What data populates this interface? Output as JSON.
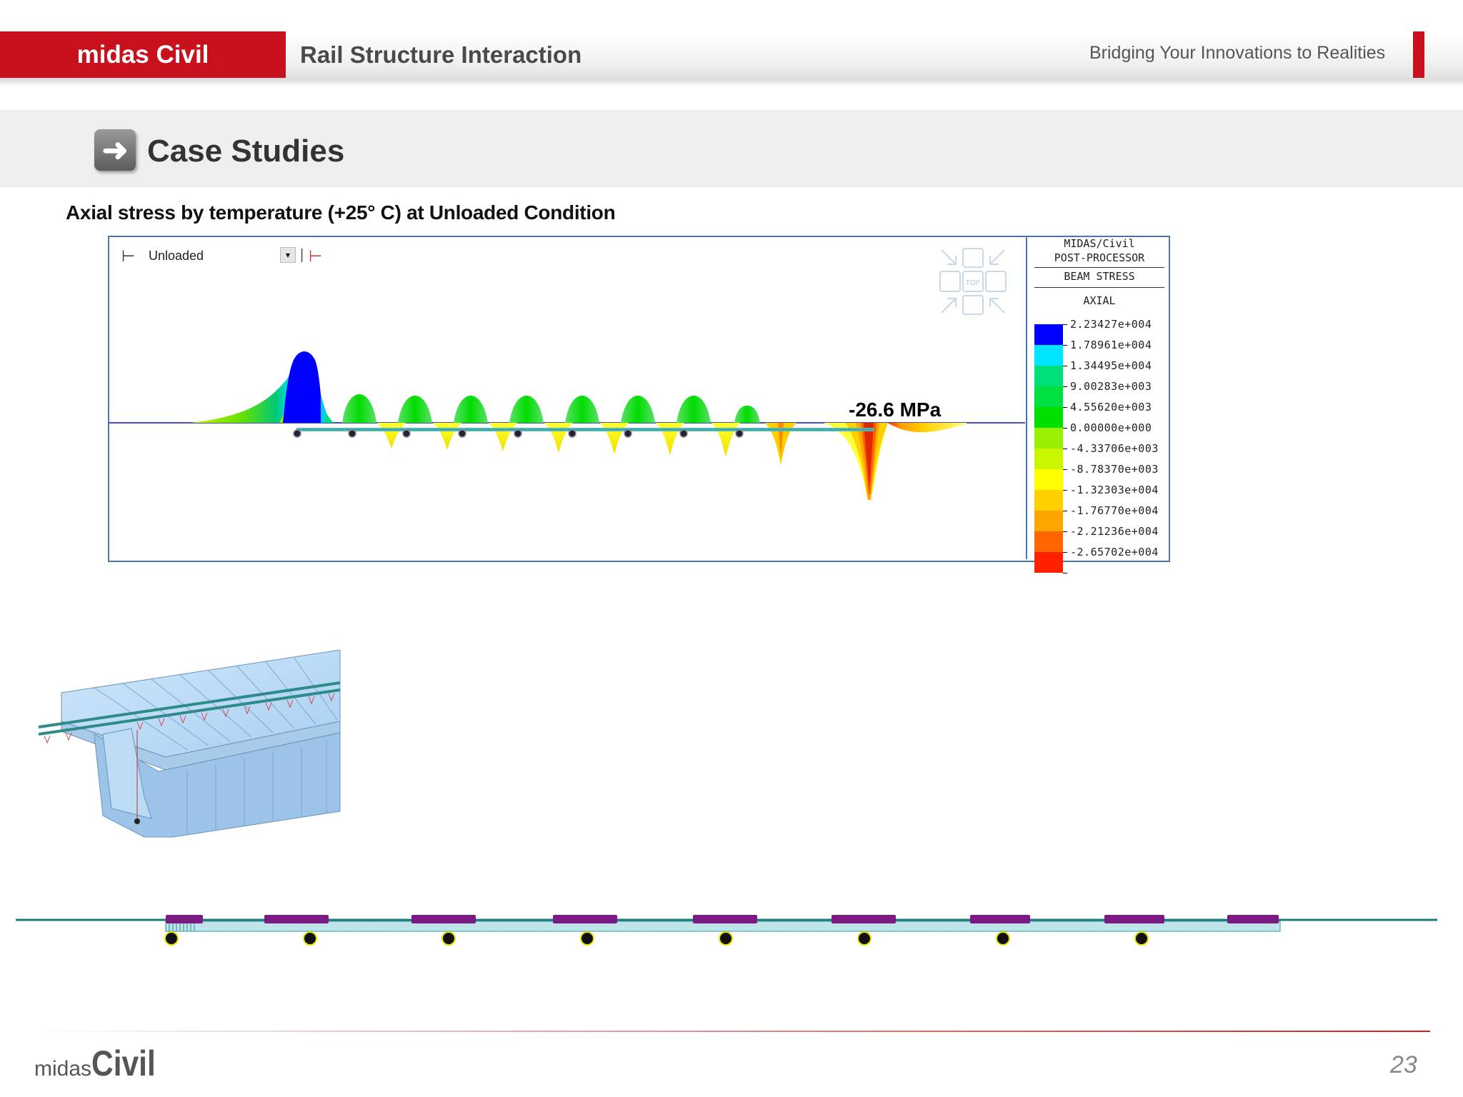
{
  "header": {
    "brand": "midas Civil",
    "title": "Rail Structure Interaction",
    "tagline": "Bridging Your Innovations to Realities"
  },
  "section": {
    "title": "Case Studies",
    "subtitle": "Axial stress by temperature (+25° C) at Unloaded Condition"
  },
  "result_view": {
    "load_case": "Unloaded",
    "annotation": "-26.6 MPa",
    "view_cube_label": "TOP",
    "legend": {
      "program": "MIDAS/Civil",
      "module": "POST-PROCESSOR",
      "result_type": "BEAM STRESS",
      "component": "AXIAL",
      "values": [
        "2.23427e+004",
        "1.78961e+004",
        "1.34495e+004",
        "9.00283e+003",
        "4.55620e+003",
        "0.00000e+000",
        "-4.33706e+003",
        "-8.78370e+003",
        "-1.32303e+004",
        "-1.76770e+004",
        "-2.21236e+004",
        "-2.65702e+004"
      ],
      "colors": [
        "#0000ff",
        "#00e5ff",
        "#00e07a",
        "#00e040",
        "#00e000",
        "#99f000",
        "#c8f500",
        "#ffff00",
        "#ffd000",
        "#ffa500",
        "#ff6600",
        "#ff2000"
      ]
    }
  },
  "footer": {
    "logo_small": "midas",
    "logo_big": "Civil",
    "page_number": "23"
  }
}
